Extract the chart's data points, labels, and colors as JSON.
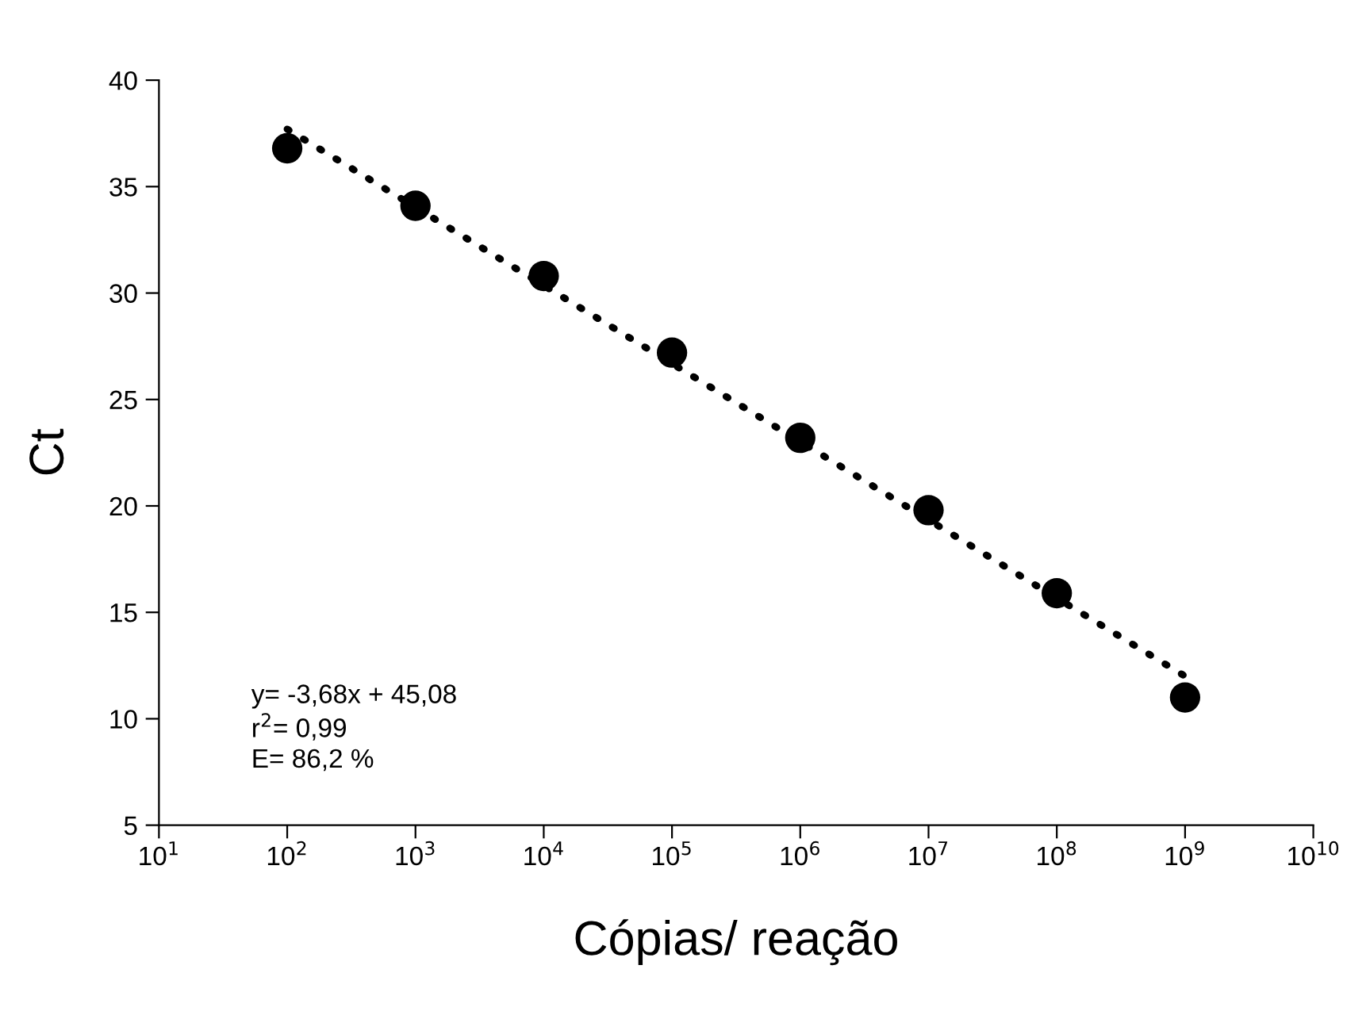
{
  "chart_data": {
    "type": "scatter",
    "xlabel": "Cópias/ reação",
    "ylabel": "Ct",
    "log": "x",
    "x": [
      100,
      1000,
      10000,
      100000,
      1000000,
      10000000,
      100000000,
      1000000000
    ],
    "series": [
      {
        "color": "#000000",
        "marker": "circle",
        "values": [
          36.8,
          34.1,
          30.8,
          27.2,
          23.2,
          19.8,
          15.9,
          11.0
        ]
      },
      {
        "type": "line",
        "color": "#000000",
        "line_style": "dotted",
        "marker": "none",
        "x": [
          100,
          1000000000
        ],
        "values": [
          37.7,
          12.0
        ]
      }
    ],
    "xlim": [
      10,
      10000000000
    ],
    "xticks": [
      {
        "value": 10,
        "label": "10$^{1}$"
      },
      {
        "value": 100,
        "label": "10$^{2}$"
      },
      {
        "value": 1000,
        "label": "10$^{3}$"
      },
      {
        "value": 10000,
        "label": "10$^{4}$"
      },
      {
        "value": 100000,
        "label": "10$^{5}$"
      },
      {
        "value": 1000000,
        "label": "10$^{6}$"
      },
      {
        "value": 10000000,
        "label": "10$^{7}$"
      },
      {
        "value": 100000000,
        "label": "10$^{8}$"
      },
      {
        "value": 1000000000,
        "label": "10$^{9}$"
      },
      {
        "value": 10000000000,
        "label": "10$^{10}$"
      }
    ],
    "ylim": [
      5,
      40
    ],
    "yticks": [
      5,
      10,
      15,
      20,
      25,
      30,
      35,
      40
    ],
    "annotations": [
      "y= -3,68x + 45,08\nr$^{2}$= 0,99\nE= 86,2 %"
    ],
    "grid": false,
    "legend": false
  }
}
